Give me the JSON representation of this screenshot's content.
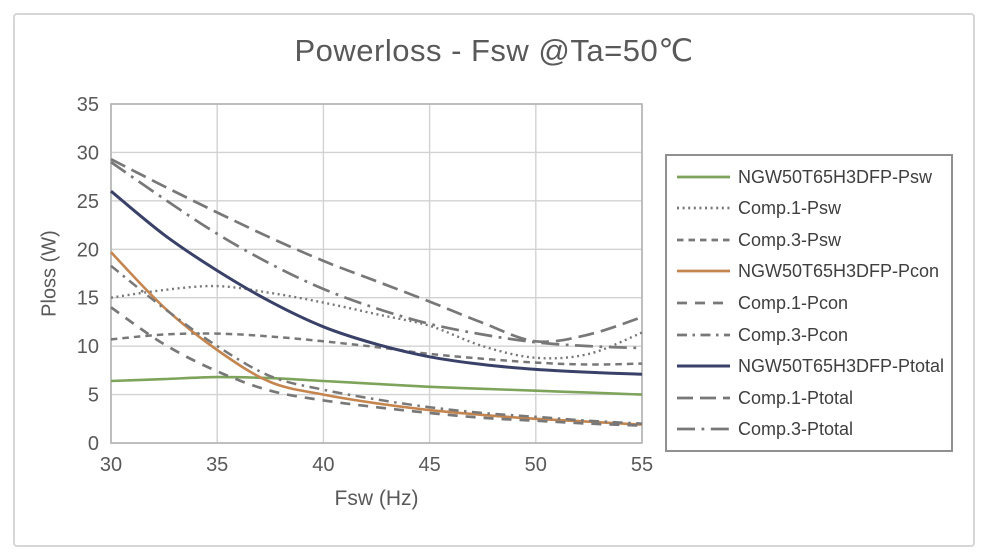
{
  "window": {
    "title": "Powerloss - Fsw @Ta=50℃"
  },
  "chart_data": {
    "type": "line",
    "title": "Powerloss - Fsw @Ta=50℃",
    "xlabel": "Fsw (Hz)",
    "ylabel": "Ploss (W)",
    "xlim": [
      30,
      55
    ],
    "ylim": [
      0,
      35
    ],
    "x_ticks": [
      30,
      35,
      40,
      45,
      50,
      55
    ],
    "y_ticks": [
      0,
      5,
      10,
      15,
      20,
      25,
      30,
      35
    ],
    "grid": true,
    "legend_position": "right",
    "grid_color": "#d2d2d2",
    "frame_color": "#b3b3b3",
    "gray_series_color": "#787878",
    "x": [
      30,
      32.5,
      35,
      37.5,
      40,
      42.5,
      45,
      47.5,
      50,
      52.5,
      55
    ],
    "series": [
      {
        "name": "NGW50T65H3DFP-Psw",
        "color": "#7ea45b",
        "style": "solid",
        "width": 2.6,
        "values": [
          6.4,
          6.6,
          6.8,
          6.7,
          6.4,
          6.1,
          5.8,
          5.6,
          5.4,
          5.2,
          5.0
        ]
      },
      {
        "name": "Comp.1-Psw",
        "color": "#787878",
        "style": "dotted",
        "width": 2.4,
        "values": [
          15.0,
          15.8,
          16.2,
          15.5,
          14.5,
          13.3,
          12.1,
          10.0,
          8.8,
          9.2,
          11.4
        ]
      },
      {
        "name": "Comp.3-Psw",
        "color": "#787878",
        "style": "short-dash",
        "width": 2.5,
        "values": [
          10.7,
          11.2,
          11.3,
          11.0,
          10.5,
          9.9,
          9.2,
          8.7,
          8.3,
          8.1,
          8.2
        ]
      },
      {
        "name": "NGW50T65H3DFP-Pcon",
        "color": "#c5854f",
        "style": "solid",
        "width": 2.6,
        "values": [
          19.7,
          14.0,
          9.6,
          6.3,
          5.0,
          4.1,
          3.4,
          2.9,
          2.5,
          2.2,
          1.9
        ]
      },
      {
        "name": "Comp.1-Pcon",
        "color": "#787878",
        "style": "dash",
        "width": 2.7,
        "values": [
          14.0,
          10.2,
          7.4,
          5.4,
          4.4,
          3.7,
          3.1,
          2.6,
          2.3,
          2.0,
          1.8
        ]
      },
      {
        "name": "Comp.3-Pcon",
        "color": "#787878",
        "style": "dash-dot",
        "width": 2.5,
        "values": [
          18.3,
          13.9,
          10.0,
          6.9,
          5.5,
          4.5,
          3.7,
          3.1,
          2.7,
          2.3,
          2.0
        ]
      },
      {
        "name": "NGW50T65H3DFP-Ptotal",
        "color": "#3a4169",
        "style": "solid",
        "width": 3.0,
        "values": [
          26.0,
          21.5,
          17.8,
          14.6,
          12.0,
          10.2,
          8.9,
          8.1,
          7.6,
          7.3,
          7.1
        ]
      },
      {
        "name": "Comp.1-Ptotal",
        "color": "#787878",
        "style": "long-dash",
        "width": 2.7,
        "values": [
          29.3,
          26.5,
          23.8,
          21.2,
          18.8,
          16.7,
          14.6,
          12.4,
          10.5,
          11.2,
          13.0
        ]
      },
      {
        "name": "Comp.3-Ptotal",
        "color": "#787878",
        "style": "long-dash-dot",
        "width": 2.7,
        "values": [
          29.0,
          25.2,
          21.6,
          18.5,
          15.9,
          13.9,
          12.3,
          11.2,
          10.4,
          10.0,
          9.8
        ]
      }
    ]
  }
}
